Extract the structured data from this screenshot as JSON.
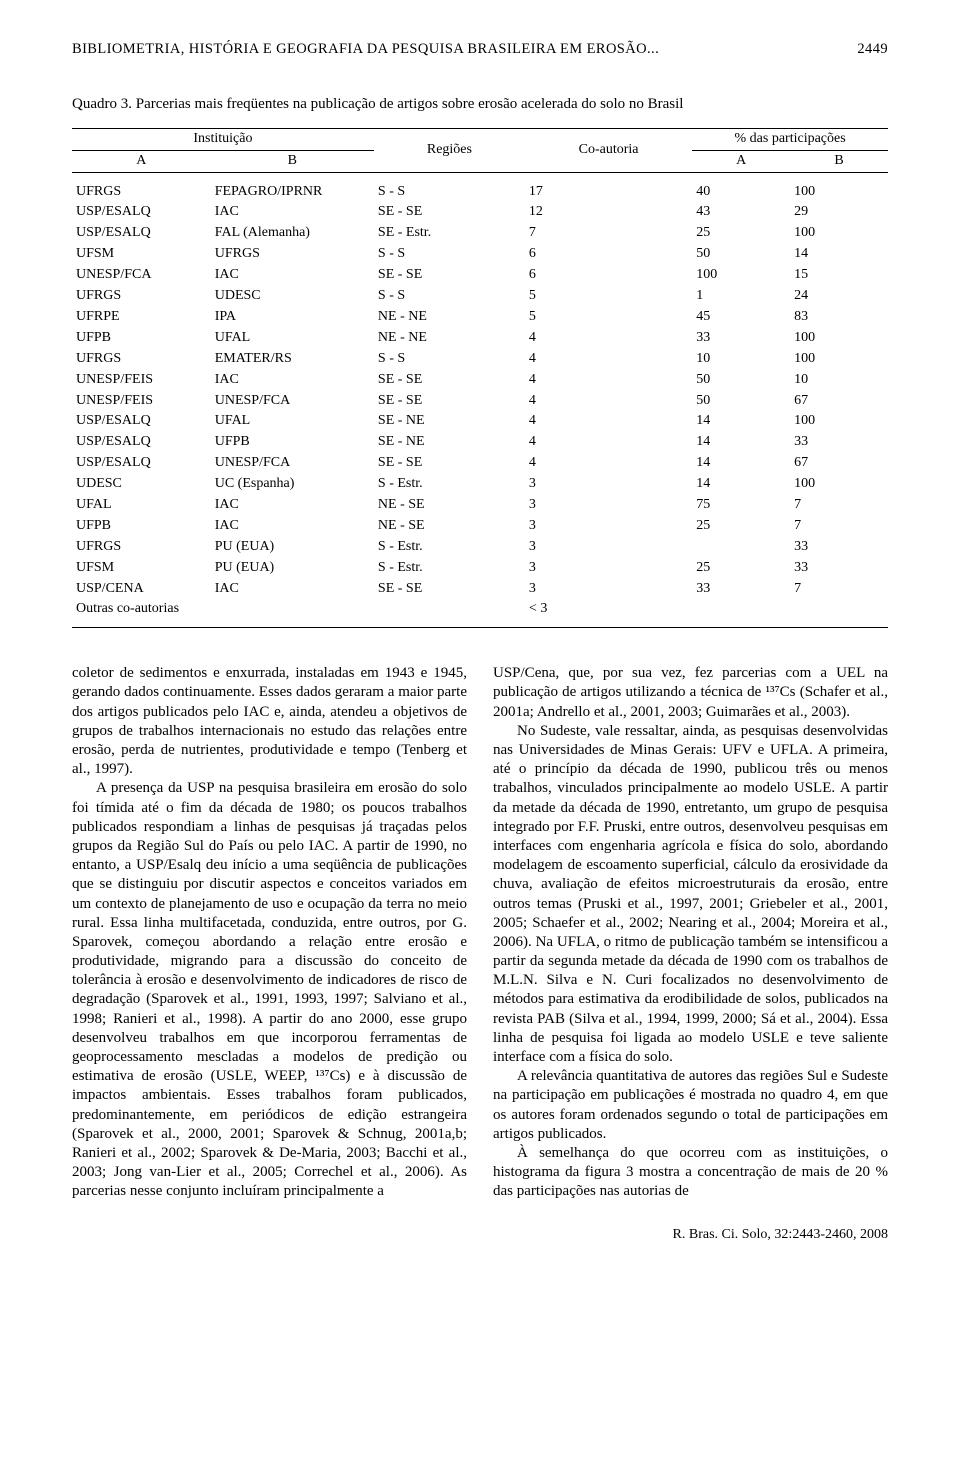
{
  "header": {
    "running_title": "BIBLIOMETRIA, HISTÓRIA E GEOGRAFIA DA PESQUISA BRASILEIRA EM EROSÃO...",
    "page_number": "2449"
  },
  "quadro": {
    "caption": "Quadro 3. Parcerias mais freqüentes na publicação de artigos sobre erosão acelerada do solo no Brasil",
    "columns": {
      "instituicao": "Instituição",
      "inst_a": "A",
      "inst_b": "B",
      "regioes": "Regiões",
      "coautoria": "Co-autoria",
      "participacoes": "% das participações",
      "part_a": "A",
      "part_b": "B"
    },
    "rows": [
      {
        "a": "UFRGS",
        "b": "FEPAGRO/IPRNR",
        "reg": "S - S",
        "co": "17",
        "pa": "40",
        "pb": "100"
      },
      {
        "a": "USP/ESALQ",
        "b": "IAC",
        "reg": "SE - SE",
        "co": "12",
        "pa": "43",
        "pb": "29"
      },
      {
        "a": "USP/ESALQ",
        "b": "FAL (Alemanha)",
        "reg": "SE - Estr.",
        "co": "7",
        "pa": "25",
        "pb": "100"
      },
      {
        "a": "UFSM",
        "b": "UFRGS",
        "reg": "S - S",
        "co": "6",
        "pa": "50",
        "pb": "14"
      },
      {
        "a": "UNESP/FCA",
        "b": "IAC",
        "reg": "SE - SE",
        "co": "6",
        "pa": "100",
        "pb": "15"
      },
      {
        "a": "UFRGS",
        "b": "UDESC",
        "reg": "S - S",
        "co": "5",
        "pa": "1",
        "pb": "24"
      },
      {
        "a": "UFRPE",
        "b": "IPA",
        "reg": "NE - NE",
        "co": "5",
        "pa": "45",
        "pb": "83"
      },
      {
        "a": "UFPB",
        "b": "UFAL",
        "reg": "NE - NE",
        "co": "4",
        "pa": "33",
        "pb": "100"
      },
      {
        "a": "UFRGS",
        "b": "EMATER/RS",
        "reg": "S - S",
        "co": "4",
        "pa": "10",
        "pb": "100"
      },
      {
        "a": "UNESP/FEIS",
        "b": "IAC",
        "reg": "SE - SE",
        "co": "4",
        "pa": "50",
        "pb": "10"
      },
      {
        "a": "UNESP/FEIS",
        "b": "UNESP/FCA",
        "reg": "SE - SE",
        "co": "4",
        "pa": "50",
        "pb": "67"
      },
      {
        "a": "USP/ESALQ",
        "b": "UFAL",
        "reg": "SE - NE",
        "co": "4",
        "pa": "14",
        "pb": "100"
      },
      {
        "a": "USP/ESALQ",
        "b": "UFPB",
        "reg": "SE - NE",
        "co": "4",
        "pa": "14",
        "pb": "33"
      },
      {
        "a": "USP/ESALQ",
        "b": "UNESP/FCA",
        "reg": "SE - SE",
        "co": "4",
        "pa": "14",
        "pb": "67"
      },
      {
        "a": "UDESC",
        "b": "UC (Espanha)",
        "reg": "S - Estr.",
        "co": "3",
        "pa": "14",
        "pb": "100"
      },
      {
        "a": "UFAL",
        "b": "IAC",
        "reg": "NE - SE",
        "co": "3",
        "pa": "75",
        "pb": "7"
      },
      {
        "a": "UFPB",
        "b": "IAC",
        "reg": "NE - SE",
        "co": "3",
        "pa": "25",
        "pb": "7"
      },
      {
        "a": "UFRGS",
        "b": "PU (EUA)",
        "reg": "S - Estr.",
        "co": "3",
        "pa": "",
        "pb": "33"
      },
      {
        "a": "UFSM",
        "b": "PU (EUA)",
        "reg": "S - Estr.",
        "co": "3",
        "pa": "25",
        "pb": "33"
      },
      {
        "a": "USP/CENA",
        "b": "IAC",
        "reg": "SE - SE",
        "co": "3",
        "pa": "33",
        "pb": "7"
      },
      {
        "a": "Outras co-autorias",
        "b": "",
        "reg": "",
        "co": "< 3",
        "pa": "",
        "pb": ""
      }
    ],
    "style": {
      "type": "table",
      "rule_color": "#000000",
      "font_size_pt": 10,
      "col_align": [
        "left",
        "left",
        "left",
        "right",
        "right",
        "right"
      ]
    }
  },
  "body": {
    "left": [
      "coletor de sedimentos e enxurrada, instaladas em 1943 e 1945, gerando dados continuamente. Esses dados geraram a maior parte dos artigos publicados pelo IAC e, ainda, atendeu a objetivos de grupos de trabalhos internacionais no estudo das relações entre erosão, perda de nutrientes, produtividade e tempo (Tenberg et al., 1997).",
      "A presença da USP na pesquisa brasileira em erosão do solo foi tímida até o fim da década de 1980; os poucos trabalhos publicados respondiam a linhas de pesquisas já traçadas pelos grupos da Região Sul do País ou pelo IAC. A partir de 1990, no entanto, a USP/Esalq deu início a uma seqüência de publicações que se distinguiu por discutir aspectos e conceitos variados em um contexto de planejamento de uso e ocupação da terra no meio rural. Essa linha multifacetada, conduzida, entre outros, por G. Sparovek, começou abordando a relação entre erosão e produtividade, migrando para a discussão do conceito de tolerância à erosão e desenvolvimento de indicadores de risco de degradação (Sparovek et al., 1991, 1993, 1997; Salviano et al., 1998; Ranieri et al., 1998). A partir do ano 2000, esse grupo desenvolveu trabalhos em que incorporou ferramentas de geoprocessamento mescladas a modelos de predição ou estimativa de erosão (USLE, WEEP, ¹³⁷Cs) e à discussão de impactos ambientais. Esses trabalhos foram publicados, predominantemente, em periódicos de edição estrangeira (Sparovek et al., 2000, 2001; Sparovek & Schnug, 2001a,b; Ranieri et al., 2002; Sparovek & De-Maria, 2003; Bacchi et al., 2003; Jong van-Lier et al., 2005; Correchel et al., 2006). As parcerias nesse conjunto incluíram principalmente a"
    ],
    "right": [
      "USP/Cena, que, por sua vez, fez parcerias com a UEL na publicação de artigos utilizando a técnica de ¹³⁷Cs (Schafer et al., 2001a; Andrello et al., 2001, 2003; Guimarães et al., 2003).",
      "No Sudeste, vale ressaltar, ainda, as pesquisas desenvolvidas nas Universidades de Minas Gerais: UFV e UFLA. A primeira, até o princípio da década de 1990, publicou três ou menos trabalhos, vinculados principalmente ao modelo USLE. A partir da metade da década de 1990, entretanto, um grupo de pesquisa integrado por F.F. Pruski, entre outros, desenvolveu pesquisas em interfaces com engenharia agrícola e física do solo, abordando modelagem de escoamento superficial, cálculo da erosividade da chuva, avaliação de efeitos microestruturais da erosão, entre outros temas (Pruski et al., 1997, 2001; Griebeler et al., 2001, 2005; Schaefer et al., 2002; Nearing et al., 2004; Moreira et al., 2006). Na UFLA, o ritmo de publicação também se intensificou a partir da segunda metade da década de 1990 com os trabalhos de M.L.N. Silva e N. Curi focalizados no desenvolvimento de métodos para estimativa da erodibilidade de solos, publicados na revista PAB (Silva et al., 1994, 1999, 2000; Sá et al., 2004). Essa linha de pesquisa foi ligada ao modelo USLE e teve saliente interface com a física do solo.",
      "A relevância quantitativa de autores das regiões Sul e Sudeste na participação em publicações é mostrada no quadro 4, em que os autores foram ordenados segundo o total de participações em artigos publicados.",
      "À semelhança do que ocorreu com as instituições, o histograma da figura 3 mostra a concentração de mais de 20 % das participações nas autorias de"
    ]
  },
  "footer": {
    "citation": "R. Bras. Ci. Solo, 32:2443-2460, 2008"
  },
  "style": {
    "background_color": "#ffffff",
    "text_color": "#000000",
    "font_family": "Times New Roman",
    "body_fontsize_pt": 11
  }
}
